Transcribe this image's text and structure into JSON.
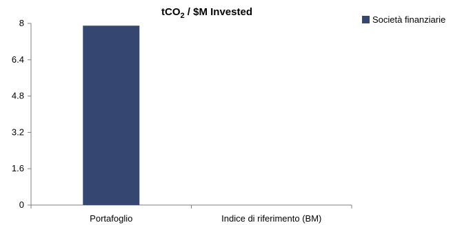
{
  "chart_data": {
    "type": "bar",
    "title": {
      "prefix": "tCO",
      "sub": "2",
      "suffix": " / $M Invested"
    },
    "categories": [
      "Portafoglio",
      "Indice di riferimento (BM)"
    ],
    "series": [
      {
        "name": "Società finanziarie",
        "values": [
          7.9,
          0
        ],
        "color": "#354670"
      }
    ],
    "yticks": [
      "0",
      "1.6",
      "3.2",
      "4.8",
      "6.4",
      "8"
    ],
    "ylim": [
      0,
      8
    ],
    "grid": false,
    "legend": "right"
  }
}
